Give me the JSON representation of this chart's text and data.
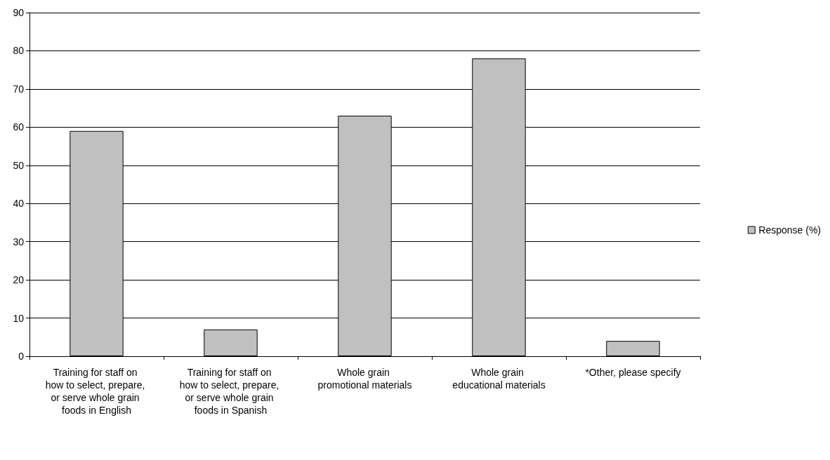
{
  "chart_data": {
    "type": "bar",
    "categories": [
      "Training for staff on how to select, prepare, or serve whole grain foods in English",
      "Training for staff on how to select, prepare, or serve whole grain foods in Spanish",
      "Whole grain promotional materials",
      "Whole grain educational materials",
      "*Other, please specify"
    ],
    "series": [
      {
        "name": "Response (%)",
        "color": "#c0c0c0",
        "values": [
          59,
          7,
          63,
          78,
          4
        ]
      }
    ],
    "ylim": [
      0,
      90
    ],
    "yticks": [
      0,
      10,
      20,
      30,
      40,
      50,
      60,
      70,
      80,
      90
    ],
    "grid": "y",
    "legend": "right"
  }
}
